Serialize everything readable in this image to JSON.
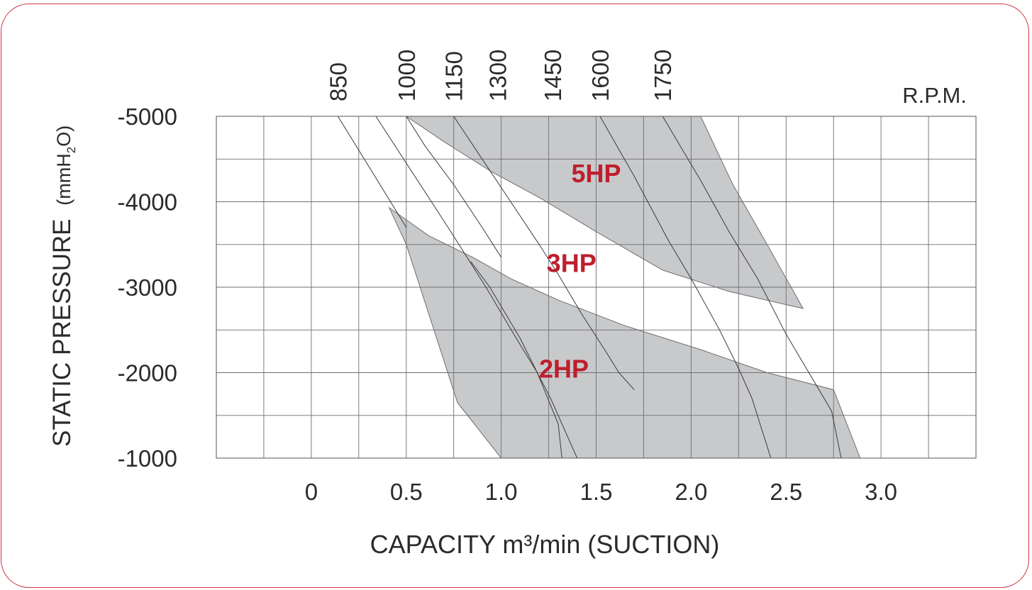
{
  "chart_data": {
    "type": "area",
    "xlabel": "CAPACITY m³/min (SUCTION)",
    "ylabel_main": "STATIC PRESSURE",
    "ylabel_unit_pre": "(mmH",
    "ylabel_unit_sub": "2",
    "ylabel_unit_post": "O)",
    "rpm_label": "R.P.M.",
    "x_ticks": [
      {
        "v": 0,
        "label": "0"
      },
      {
        "v": 0.5,
        "label": "0.5"
      },
      {
        "v": 1.0,
        "label": "1.0"
      },
      {
        "v": 1.5,
        "label": "1.5"
      },
      {
        "v": 2.0,
        "label": "2.0"
      },
      {
        "v": 2.5,
        "label": "2.5"
      },
      {
        "v": 3.0,
        "label": "3.0"
      }
    ],
    "y_ticks": [
      {
        "v": 5000,
        "label": "-5000"
      },
      {
        "v": 4000,
        "label": "-4000"
      },
      {
        "v": 3000,
        "label": "-3000"
      },
      {
        "v": 2000,
        "label": "-2000"
      },
      {
        "v": 1000,
        "label": "-1000"
      }
    ],
    "xlim": [
      -0.5,
      3.5
    ],
    "ylim": [
      1000,
      5000
    ],
    "grid": true,
    "rpm_curves": [
      {
        "rpm": "850",
        "label_x": 0.14,
        "points": [
          [
            0.14,
            5000
          ],
          [
            0.32,
            4350
          ],
          [
            0.5,
            3700
          ]
        ]
      },
      {
        "rpm": "1000",
        "label_x": 0.5,
        "points": [
          [
            0.5,
            5000
          ],
          [
            0.6,
            4650
          ],
          [
            0.75,
            4200
          ],
          [
            0.9,
            3700
          ],
          [
            1.0,
            3350
          ]
        ]
      },
      {
        "rpm": "1150",
        "label_x": 0.75,
        "points": [
          [
            0.75,
            5000
          ],
          [
            0.9,
            4500
          ],
          [
            1.05,
            4000
          ],
          [
            1.2,
            3500
          ],
          [
            1.3,
            3150
          ],
          [
            1.42,
            2700
          ],
          [
            1.55,
            2250
          ],
          [
            1.62,
            2000
          ],
          [
            1.7,
            1800
          ]
        ]
      },
      {
        "rpm": "1300",
        "label_x": 0.98,
        "points": [
          [
            0.34,
            5000
          ],
          [
            0.72,
            3700
          ],
          [
            0.92,
            3000
          ],
          [
            1.08,
            2400
          ],
          [
            1.19,
            2000
          ],
          [
            1.26,
            1700
          ],
          [
            1.4,
            1000
          ]
        ]
      },
      {
        "rpm": "1450",
        "label_x": 1.27,
        "points": [
          [
            0.84,
            3300
          ],
          [
            0.94,
            3000
          ],
          [
            1.1,
            2400
          ],
          [
            1.19,
            2000
          ],
          [
            1.3,
            1400
          ],
          [
            1.32,
            1000
          ]
        ]
      },
      {
        "rpm": "1600",
        "label_x": 1.52,
        "points": [
          [
            1.52,
            5000
          ],
          [
            1.7,
            4300
          ],
          [
            1.88,
            3550
          ],
          [
            2.0,
            3100
          ],
          [
            2.15,
            2500
          ],
          [
            2.25,
            2050
          ],
          [
            2.32,
            1700
          ],
          [
            2.42,
            1000
          ]
        ]
      },
      {
        "rpm": "1750",
        "label_x": 1.85,
        "points": [
          [
            1.85,
            5000
          ],
          [
            2.05,
            4250
          ],
          [
            2.2,
            3650
          ],
          [
            2.35,
            3100
          ],
          [
            2.5,
            2450
          ],
          [
            2.62,
            2000
          ],
          [
            2.74,
            1550
          ],
          [
            2.79,
            1000
          ]
        ]
      }
    ],
    "series": [
      {
        "name": "5HP",
        "color": "#c8c9cb",
        "label_pos": [
          1.5,
          4230
        ],
        "polygon": [
          [
            0.5,
            5000
          ],
          [
            2.05,
            5000
          ],
          [
            2.22,
            4200
          ],
          [
            2.4,
            3500
          ],
          [
            2.59,
            2750
          ],
          [
            2.2,
            2950
          ],
          [
            1.85,
            3200
          ],
          [
            1.5,
            3650
          ],
          [
            1.2,
            4050
          ],
          [
            0.95,
            4350
          ],
          [
            0.7,
            4700
          ]
        ]
      },
      {
        "name": "3HP",
        "color": "#ffffff",
        "label_pos": [
          1.37,
          3180
        ],
        "polygon": []
      },
      {
        "name": "2HP",
        "color": "#c8c9cb",
        "label_pos": [
          1.33,
          1940
        ],
        "polygon": [
          [
            0.41,
            3930
          ],
          [
            0.62,
            3600
          ],
          [
            0.85,
            3350
          ],
          [
            1.05,
            3100
          ],
          [
            1.3,
            2850
          ],
          [
            1.65,
            2550
          ],
          [
            2.05,
            2270
          ],
          [
            2.4,
            2000
          ],
          [
            2.75,
            1800
          ],
          [
            2.89,
            1000
          ],
          [
            1.0,
            1000
          ],
          [
            0.77,
            1650
          ],
          [
            0.5,
            3500
          ]
        ]
      }
    ],
    "label_color": "#be1e2d"
  }
}
